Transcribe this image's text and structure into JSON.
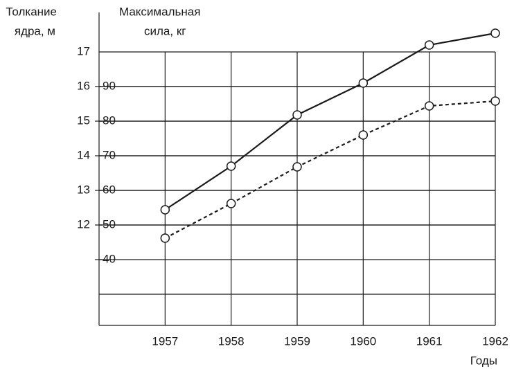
{
  "chart_data": {
    "type": "line",
    "ylabel": [
      "Толкание",
      "ядра, м"
    ],
    "y2label": [
      "Максимальная",
      "сила, кг"
    ],
    "xlabel": "Годы",
    "x": [
      1957,
      1958,
      1959,
      1960,
      1961,
      1962
    ],
    "xlim": [
      1956,
      1962
    ],
    "xticks": [
      1957,
      1958,
      1959,
      1960,
      1961,
      1962
    ],
    "ylim": [
      9.1,
      18.14
    ],
    "yticks": [
      12,
      13,
      14,
      15,
      16,
      17
    ],
    "y2lim": [
      21,
      111.4
    ],
    "y2ticks": [
      40,
      50,
      60,
      70,
      80,
      90
    ],
    "grid": true,
    "series": [
      {
        "color": "#1a1a1a",
        "style": "solid",
        "values": [
          12.44,
          13.7,
          15.18,
          16.1,
          17.2,
          17.54
        ]
      },
      {
        "color": "#1a1a1a",
        "style": "dotted",
        "axis": "y2",
        "values": [
          46.2,
          56.2,
          66.8,
          76,
          84.4,
          85.8
        ]
      }
    ]
  }
}
